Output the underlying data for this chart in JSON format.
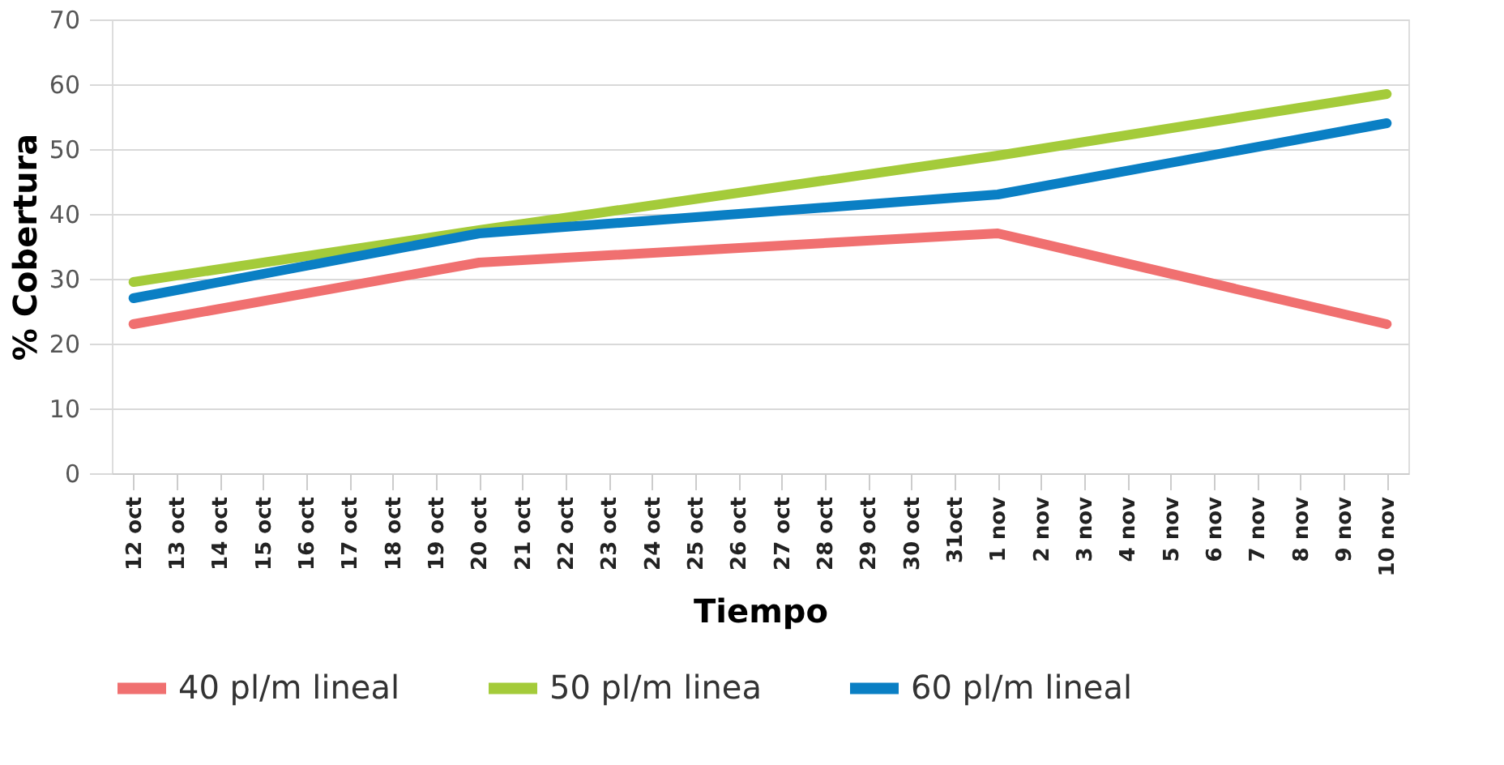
{
  "chart_data": {
    "type": "line",
    "xlabel": "Tiempo",
    "ylabel": "% Cobertura",
    "categories": [
      "12 oct",
      "13 oct",
      "14 oct",
      "15 oct",
      "16 oct",
      "17 oct",
      "18 oct",
      "19 oct",
      "20 oct",
      "21 oct",
      "22 oct",
      "23 oct",
      "24 oct",
      "25 oct",
      "26 oct",
      "27 oct",
      "28 oct",
      "29 oct",
      "30 oct",
      "31oct",
      "1 nov",
      "2 nov",
      "3 nov",
      "4 nov",
      "5 nov",
      "6 nov",
      "7 nov",
      "8 nov",
      "9 nov",
      "10 nov"
    ],
    "series": [
      {
        "name": "40 pl/m lineal",
        "color": "#f07070",
        "values": [
          23,
          null,
          null,
          null,
          null,
          null,
          null,
          null,
          32.5,
          null,
          null,
          null,
          null,
          null,
          null,
          null,
          null,
          null,
          null,
          null,
          37,
          null,
          null,
          null,
          null,
          null,
          null,
          null,
          null,
          23
        ]
      },
      {
        "name": "50 pl/m linea",
        "color": "#a4cb3a",
        "values": [
          29.5,
          null,
          null,
          null,
          null,
          null,
          null,
          null,
          37.5,
          null,
          null,
          null,
          null,
          null,
          null,
          null,
          null,
          null,
          null,
          null,
          49,
          null,
          null,
          null,
          null,
          null,
          null,
          null,
          null,
          58.5
        ]
      },
      {
        "name": "60 pl/m lineal",
        "color": "#0a7fc4",
        "values": [
          27,
          null,
          null,
          null,
          null,
          null,
          null,
          null,
          37,
          null,
          null,
          null,
          null,
          null,
          null,
          null,
          null,
          null,
          null,
          null,
          43,
          null,
          null,
          null,
          null,
          null,
          null,
          null,
          null,
          54
        ]
      }
    ],
    "ylim": [
      0,
      70
    ],
    "yticks": [
      0,
      10,
      20,
      30,
      40,
      50,
      60,
      70
    ],
    "grid": "y",
    "legend": "bottom",
    "marker": "none",
    "line_style": "solid"
  }
}
